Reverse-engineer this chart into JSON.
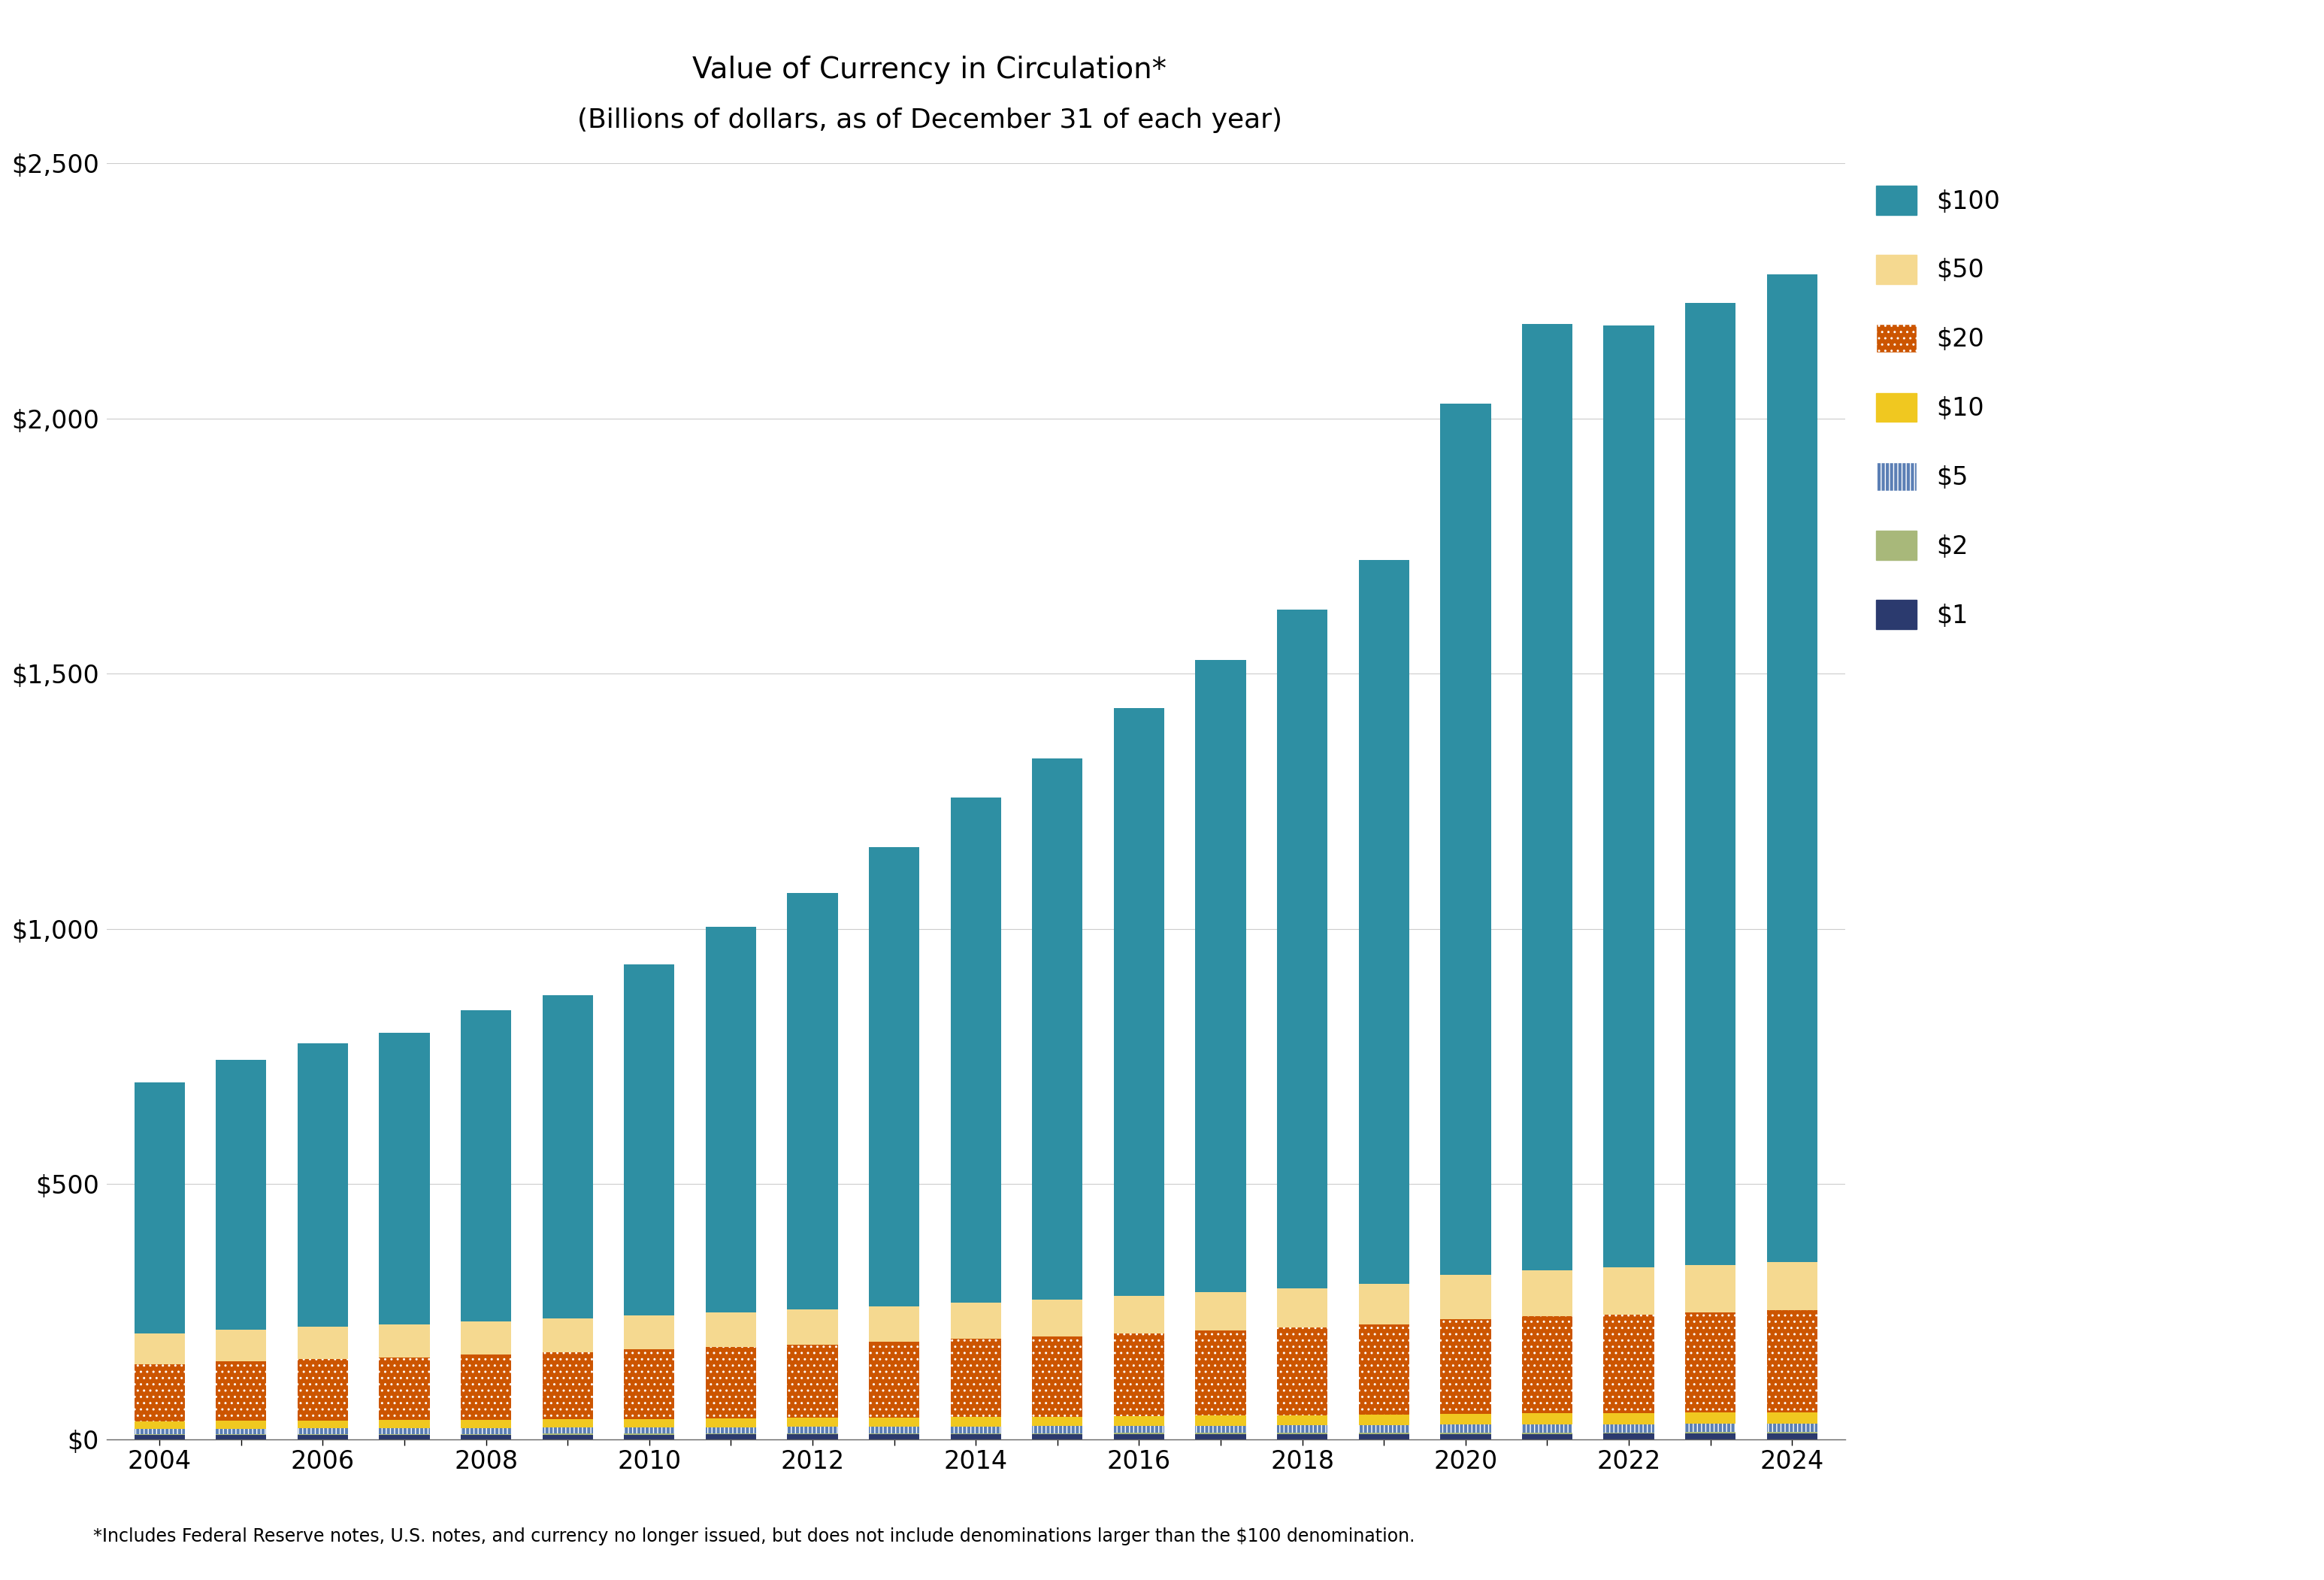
{
  "title_line1": "Value of Currency in Circulation*",
  "title_line2": "(Billions of dollars, as of December 31 of each year)",
  "footnote": "*Includes Federal Reserve notes, U.S. notes, and currency no longer issued, but does not include denominations larger than the $100 denomination.",
  "years": [
    2004,
    2005,
    2006,
    2007,
    2008,
    2009,
    2010,
    2011,
    2012,
    2013,
    2014,
    2015,
    2016,
    2017,
    2018,
    2019,
    2020,
    2021,
    2022,
    2023,
    2024
  ],
  "denominations": [
    "$1",
    "$2",
    "$5",
    "$10",
    "$20",
    "$50",
    "$100"
  ],
  "colors": {
    "$1": "#2b3a6e",
    "$2": "#a8b87a",
    "$5": "#5b7fb5",
    "$10": "#f0c820",
    "$20": "#cc5500",
    "$50": "#f5d990",
    "$100": "#2e8fa3"
  },
  "hatches": {
    "$1": "",
    "$2": "",
    "$5": "|||",
    "$10": "",
    "$20": "..",
    "$50": "",
    "$100": ""
  },
  "data": {
    "$1": [
      8.1,
      8.3,
      8.5,
      8.6,
      8.8,
      9.0,
      9.1,
      9.3,
      9.4,
      9.5,
      9.7,
      9.8,
      9.9,
      10.0,
      10.1,
      10.2,
      10.3,
      10.5,
      10.6,
      10.7,
      10.8
    ],
    "$2": [
      1.5,
      1.6,
      1.6,
      1.7,
      1.7,
      1.7,
      1.8,
      1.8,
      1.9,
      2.0,
      2.1,
      2.1,
      2.2,
      2.3,
      2.4,
      2.5,
      2.6,
      2.7,
      2.8,
      2.9,
      3.0
    ],
    "$5": [
      10.2,
      10.5,
      10.8,
      11.1,
      11.5,
      11.9,
      12.2,
      12.5,
      12.8,
      13.1,
      13.4,
      13.7,
      14.0,
      14.3,
      14.6,
      14.9,
      15.5,
      15.9,
      16.2,
      16.5,
      16.8
    ],
    "$10": [
      15.2,
      15.6,
      16.0,
      16.2,
      16.5,
      16.7,
      16.9,
      17.2,
      17.6,
      18.0,
      18.4,
      18.8,
      19.2,
      19.6,
      20.0,
      20.5,
      21.2,
      21.6,
      21.9,
      22.2,
      22.6
    ],
    "$20": [
      112,
      117,
      120,
      123,
      127,
      131,
      136,
      140,
      143,
      148,
      153,
      157,
      162,
      167,
      172,
      177,
      186,
      190,
      193,
      196,
      199
    ],
    "$50": [
      60,
      62,
      63,
      64,
      65,
      66,
      67,
      68,
      69,
      70,
      71,
      72,
      73,
      75,
      77,
      80,
      87,
      90,
      92,
      93,
      95
    ],
    "$100": [
      492,
      528,
      556,
      572,
      610,
      634,
      688,
      755,
      816,
      900,
      990,
      1060,
      1152,
      1238,
      1330,
      1417,
      1706,
      1855,
      1845,
      1885,
      1935
    ]
  },
  "ylim": [
    0,
    2500
  ],
  "yticks": [
    0,
    500,
    1000,
    1500,
    2000,
    2500
  ],
  "ytick_labels": [
    "$0",
    "$500",
    "$1,000",
    "$1,500",
    "$2,000",
    "$2,500"
  ],
  "background_color": "#ffffff",
  "bar_width": 0.62
}
